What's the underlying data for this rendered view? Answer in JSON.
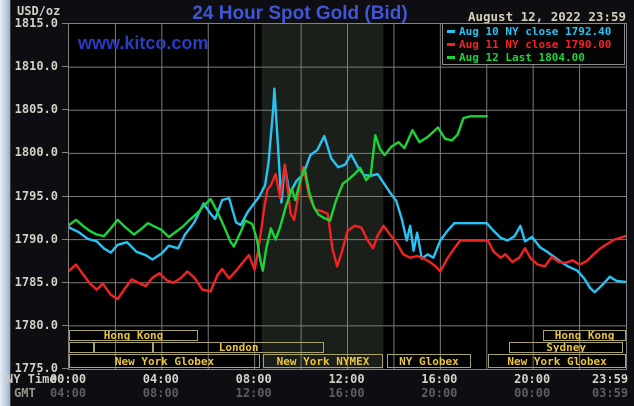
{
  "header": {
    "unit": "USD/oz",
    "title": "24 Hour Spot Gold (Bid)",
    "datetime": "August 12, 2022 23:59",
    "watermark": "www.kitco.com"
  },
  "legend": {
    "items": [
      {
        "label": "Aug 10 NY close 1792.40",
        "color": "#27c3f5"
      },
      {
        "label": "Aug 11 NY close 1790.00",
        "color": "#f42222"
      },
      {
        "label": "Aug 12 Last 1804.00",
        "color": "#1dd338"
      }
    ]
  },
  "chart_data": {
    "type": "line",
    "title": "24 Hour Spot Gold (Bid)",
    "grid_color": "#7c7c7c",
    "plot_bg": "#000000",
    "shaded_region": {
      "start_hour": 8.3,
      "end_hour": 13.55,
      "color": "#1a1f19"
    },
    "x_axis": {
      "label_primary": "NY Time",
      "label_secondary": "GMT",
      "range_hours": [
        0,
        24
      ],
      "gridline_step_hours": 2,
      "ticks": [
        {
          "hour": 0,
          "ny": "00:00",
          "gmt": "04:00"
        },
        {
          "hour": 4,
          "ny": "04:00",
          "gmt": "08:00"
        },
        {
          "hour": 8,
          "ny": "08:00",
          "gmt": "12:00"
        },
        {
          "hour": 12,
          "ny": "12:00",
          "gmt": "16:00"
        },
        {
          "hour": 16,
          "ny": "16:00",
          "gmt": "20:00"
        },
        {
          "hour": 20,
          "ny": "20:00",
          "gmt": "00:00"
        },
        {
          "hour": 23.983,
          "ny": "23:59",
          "gmt": "03:59"
        }
      ]
    },
    "y_axis": {
      "unit": "USD/oz",
      "min": 1775,
      "max": 1815,
      "tick_step": 5,
      "tick_labels": [
        "1815.0",
        "1810.0",
        "1805.0",
        "1800.0",
        "1795.0",
        "1790.0",
        "1785.0",
        "1780.0",
        "1775.0"
      ]
    },
    "sessions": [
      {
        "row": 0,
        "label": "Hong Kong",
        "start": 0,
        "end": 5.56
      },
      {
        "row": 0,
        "label": "Hong Kong",
        "start": 20.43,
        "end": 24
      },
      {
        "row": 1,
        "label": "",
        "start": 0,
        "end": 1.08
      },
      {
        "row": 1,
        "label": "",
        "start": 1.08,
        "end": 3.62
      },
      {
        "row": 1,
        "label": "London",
        "start": 3.62,
        "end": 11.0
      },
      {
        "row": 1,
        "label": "Sydney",
        "start": 18.96,
        "end": 23.88
      },
      {
        "row": 2,
        "label": "New York Globex",
        "start": 0,
        "end": 8.23
      },
      {
        "row": 2,
        "label": "New York NYMEX",
        "start": 8.36,
        "end": 13.53
      },
      {
        "row": 2,
        "label": "NY Globex",
        "start": 13.7,
        "end": 17.32
      },
      {
        "row": 2,
        "label": "New York Globex",
        "start": 18.06,
        "end": 24
      }
    ],
    "series": [
      {
        "name": "Aug 10",
        "legend": "Aug 10 NY close 1792.40",
        "ny_close": 1792.4,
        "color": "#27c3f5",
        "points": [
          [
            0,
            1791.4
          ],
          [
            0.4,
            1790.9
          ],
          [
            0.8,
            1790.1
          ],
          [
            1.2,
            1789.8
          ],
          [
            1.5,
            1789.0
          ],
          [
            1.8,
            1788.5
          ],
          [
            2.1,
            1789.4
          ],
          [
            2.5,
            1789.7
          ],
          [
            2.9,
            1788.6
          ],
          [
            3.3,
            1788.2
          ],
          [
            3.6,
            1787.7
          ],
          [
            4.0,
            1788.4
          ],
          [
            4.3,
            1789.3
          ],
          [
            4.7,
            1789.0
          ],
          [
            5.0,
            1790.6
          ],
          [
            5.4,
            1792.0
          ],
          [
            5.8,
            1794.2
          ],
          [
            6.1,
            1793.0
          ],
          [
            6.3,
            1792.4
          ],
          [
            6.6,
            1794.6
          ],
          [
            6.9,
            1794.8
          ],
          [
            7.2,
            1792.0
          ],
          [
            7.4,
            1791.7
          ],
          [
            7.7,
            1793.2
          ],
          [
            8.0,
            1794.3
          ],
          [
            8.2,
            1795.0
          ],
          [
            8.45,
            1796.3
          ],
          [
            8.6,
            1799.0
          ],
          [
            8.8,
            1805.2
          ],
          [
            8.85,
            1807.5
          ],
          [
            9.0,
            1801.0
          ],
          [
            9.15,
            1794.3
          ],
          [
            9.3,
            1798.6
          ],
          [
            9.5,
            1795.3
          ],
          [
            9.8,
            1796.8
          ],
          [
            10.1,
            1797.6
          ],
          [
            10.4,
            1799.8
          ],
          [
            10.7,
            1800.4
          ],
          [
            11.0,
            1802.0
          ],
          [
            11.3,
            1799.4
          ],
          [
            11.6,
            1798.4
          ],
          [
            11.9,
            1798.7
          ],
          [
            12.15,
            1799.9
          ],
          [
            12.45,
            1798.4
          ],
          [
            12.7,
            1797.5
          ],
          [
            13.0,
            1797.4
          ],
          [
            13.3,
            1797.6
          ],
          [
            13.6,
            1796.4
          ],
          [
            13.9,
            1795.2
          ],
          [
            14.1,
            1794.5
          ],
          [
            14.35,
            1792.3
          ],
          [
            14.55,
            1789.9
          ],
          [
            14.7,
            1791.6
          ],
          [
            14.85,
            1788.7
          ],
          [
            15.0,
            1790.8
          ],
          [
            15.2,
            1787.8
          ],
          [
            15.45,
            1788.3
          ],
          [
            15.7,
            1787.9
          ],
          [
            16.0,
            1789.9
          ],
          [
            16.3,
            1791.0
          ],
          [
            16.6,
            1791.9
          ],
          [
            17.0,
            1791.9
          ],
          [
            17.5,
            1791.9
          ],
          [
            18.0,
            1791.9
          ],
          [
            18.3,
            1791.0
          ],
          [
            18.6,
            1790.2
          ],
          [
            18.9,
            1789.9
          ],
          [
            19.2,
            1790.4
          ],
          [
            19.45,
            1791.6
          ],
          [
            19.65,
            1789.8
          ],
          [
            19.95,
            1790.3
          ],
          [
            20.3,
            1789.1
          ],
          [
            20.6,
            1788.6
          ],
          [
            20.9,
            1788.0
          ],
          [
            21.2,
            1787.4
          ],
          [
            21.5,
            1786.9
          ],
          [
            21.9,
            1786.4
          ],
          [
            22.2,
            1785.5
          ],
          [
            22.45,
            1784.4
          ],
          [
            22.65,
            1783.9
          ],
          [
            23.0,
            1784.8
          ],
          [
            23.3,
            1785.7
          ],
          [
            23.6,
            1785.2
          ],
          [
            23.98,
            1785.1
          ]
        ]
      },
      {
        "name": "Aug 11",
        "legend": "Aug 11 NY close 1790.00",
        "ny_close": 1790.0,
        "color": "#f42222",
        "points": [
          [
            0,
            1786.4
          ],
          [
            0.3,
            1787.1
          ],
          [
            0.6,
            1786.0
          ],
          [
            0.9,
            1784.9
          ],
          [
            1.2,
            1784.2
          ],
          [
            1.45,
            1784.9
          ],
          [
            1.8,
            1783.6
          ],
          [
            2.1,
            1783.1
          ],
          [
            2.4,
            1784.3
          ],
          [
            2.7,
            1785.4
          ],
          [
            3.0,
            1785.0
          ],
          [
            3.3,
            1784.6
          ],
          [
            3.6,
            1785.6
          ],
          [
            3.9,
            1786.1
          ],
          [
            4.2,
            1785.3
          ],
          [
            4.5,
            1785.0
          ],
          [
            4.8,
            1785.5
          ],
          [
            5.1,
            1786.3
          ],
          [
            5.4,
            1785.6
          ],
          [
            5.75,
            1784.2
          ],
          [
            6.1,
            1784.0
          ],
          [
            6.4,
            1785.9
          ],
          [
            6.6,
            1786.6
          ],
          [
            6.9,
            1785.5
          ],
          [
            7.2,
            1786.4
          ],
          [
            7.5,
            1787.4
          ],
          [
            7.75,
            1788.2
          ],
          [
            8.0,
            1786.5
          ],
          [
            8.2,
            1789.5
          ],
          [
            8.4,
            1793.5
          ],
          [
            8.55,
            1795.8
          ],
          [
            8.7,
            1796.3
          ],
          [
            8.9,
            1797.6
          ],
          [
            9.1,
            1794.8
          ],
          [
            9.3,
            1798.7
          ],
          [
            9.55,
            1793.0
          ],
          [
            9.7,
            1792.3
          ],
          [
            9.9,
            1795.5
          ],
          [
            10.1,
            1798.4
          ],
          [
            10.35,
            1795.0
          ],
          [
            10.6,
            1793.5
          ],
          [
            10.9,
            1793.3
          ],
          [
            11.15,
            1793.0
          ],
          [
            11.35,
            1789.0
          ],
          [
            11.55,
            1786.9
          ],
          [
            11.75,
            1788.5
          ],
          [
            12.0,
            1791.0
          ],
          [
            12.3,
            1791.6
          ],
          [
            12.6,
            1791.4
          ],
          [
            12.85,
            1790.0
          ],
          [
            13.1,
            1789.0
          ],
          [
            13.3,
            1790.5
          ],
          [
            13.55,
            1791.6
          ],
          [
            13.8,
            1790.7
          ],
          [
            14.1,
            1789.7
          ],
          [
            14.4,
            1788.3
          ],
          [
            14.7,
            1787.9
          ],
          [
            15.0,
            1788.1
          ],
          [
            15.3,
            1787.8
          ],
          [
            15.6,
            1787.3
          ],
          [
            15.8,
            1786.9
          ],
          [
            16.0,
            1786.3
          ],
          [
            16.3,
            1787.8
          ],
          [
            16.6,
            1789.0
          ],
          [
            16.85,
            1789.9
          ],
          [
            17.5,
            1789.9
          ],
          [
            18.05,
            1789.9
          ],
          [
            18.3,
            1788.6
          ],
          [
            18.6,
            1787.9
          ],
          [
            18.8,
            1788.3
          ],
          [
            19.1,
            1787.4
          ],
          [
            19.4,
            1787.9
          ],
          [
            19.65,
            1789.0
          ],
          [
            19.9,
            1787.8
          ],
          [
            20.2,
            1787.1
          ],
          [
            20.5,
            1786.9
          ],
          [
            20.8,
            1788.0
          ],
          [
            21.1,
            1787.4
          ],
          [
            21.4,
            1787.3
          ],
          [
            21.7,
            1787.6
          ],
          [
            22.0,
            1787.1
          ],
          [
            22.3,
            1787.5
          ],
          [
            22.6,
            1788.3
          ],
          [
            22.9,
            1789.0
          ],
          [
            23.2,
            1789.5
          ],
          [
            23.5,
            1790.0
          ],
          [
            23.98,
            1790.4
          ]
        ]
      },
      {
        "name": "Aug 12",
        "legend": "Aug 12 Last 1804.00",
        "last": 1804.0,
        "color": "#1dd338",
        "points": [
          [
            0,
            1791.7
          ],
          [
            0.3,
            1792.3
          ],
          [
            0.6,
            1791.6
          ],
          [
            0.9,
            1791.0
          ],
          [
            1.2,
            1790.6
          ],
          [
            1.5,
            1790.4
          ],
          [
            1.8,
            1791.3
          ],
          [
            2.1,
            1792.3
          ],
          [
            2.4,
            1791.5
          ],
          [
            2.8,
            1790.6
          ],
          [
            3.1,
            1791.2
          ],
          [
            3.4,
            1791.9
          ],
          [
            3.7,
            1791.5
          ],
          [
            4.0,
            1791.1
          ],
          [
            4.3,
            1790.3
          ],
          [
            4.6,
            1790.9
          ],
          [
            4.9,
            1791.5
          ],
          [
            5.2,
            1792.3
          ],
          [
            5.5,
            1793.0
          ],
          [
            5.8,
            1793.9
          ],
          [
            6.1,
            1794.7
          ],
          [
            6.4,
            1793.2
          ],
          [
            6.7,
            1791.4
          ],
          [
            6.95,
            1789.8
          ],
          [
            7.1,
            1789.2
          ],
          [
            7.4,
            1790.9
          ],
          [
            7.6,
            1792.2
          ],
          [
            7.9,
            1791.8
          ],
          [
            8.1,
            1790.0
          ],
          [
            8.25,
            1787.5
          ],
          [
            8.35,
            1786.4
          ],
          [
            8.5,
            1789.0
          ],
          [
            8.7,
            1791.3
          ],
          [
            8.9,
            1790.0
          ],
          [
            9.1,
            1791.5
          ],
          [
            9.35,
            1793.9
          ],
          [
            9.6,
            1795.9
          ],
          [
            9.75,
            1794.6
          ],
          [
            10.0,
            1797.2
          ],
          [
            10.15,
            1798.3
          ],
          [
            10.35,
            1795.5
          ],
          [
            10.55,
            1793.8
          ],
          [
            10.75,
            1792.9
          ],
          [
            11.0,
            1792.5
          ],
          [
            11.25,
            1792.2
          ],
          [
            11.5,
            1794.5
          ],
          [
            11.8,
            1796.5
          ],
          [
            12.05,
            1797.0
          ],
          [
            12.3,
            1797.6
          ],
          [
            12.55,
            1798.3
          ],
          [
            12.8,
            1796.9
          ],
          [
            13.0,
            1797.5
          ],
          [
            13.2,
            1802.1
          ],
          [
            13.4,
            1800.5
          ],
          [
            13.6,
            1799.8
          ],
          [
            13.9,
            1800.8
          ],
          [
            14.2,
            1801.3
          ],
          [
            14.45,
            1800.6
          ],
          [
            14.8,
            1802.7
          ],
          [
            15.1,
            1801.3
          ],
          [
            15.45,
            1801.9
          ],
          [
            15.9,
            1803.0
          ],
          [
            16.2,
            1801.7
          ],
          [
            16.5,
            1801.5
          ],
          [
            16.75,
            1802.2
          ],
          [
            17.0,
            1804.1
          ],
          [
            17.3,
            1804.3
          ],
          [
            18.0,
            1804.3
          ]
        ]
      }
    ]
  }
}
